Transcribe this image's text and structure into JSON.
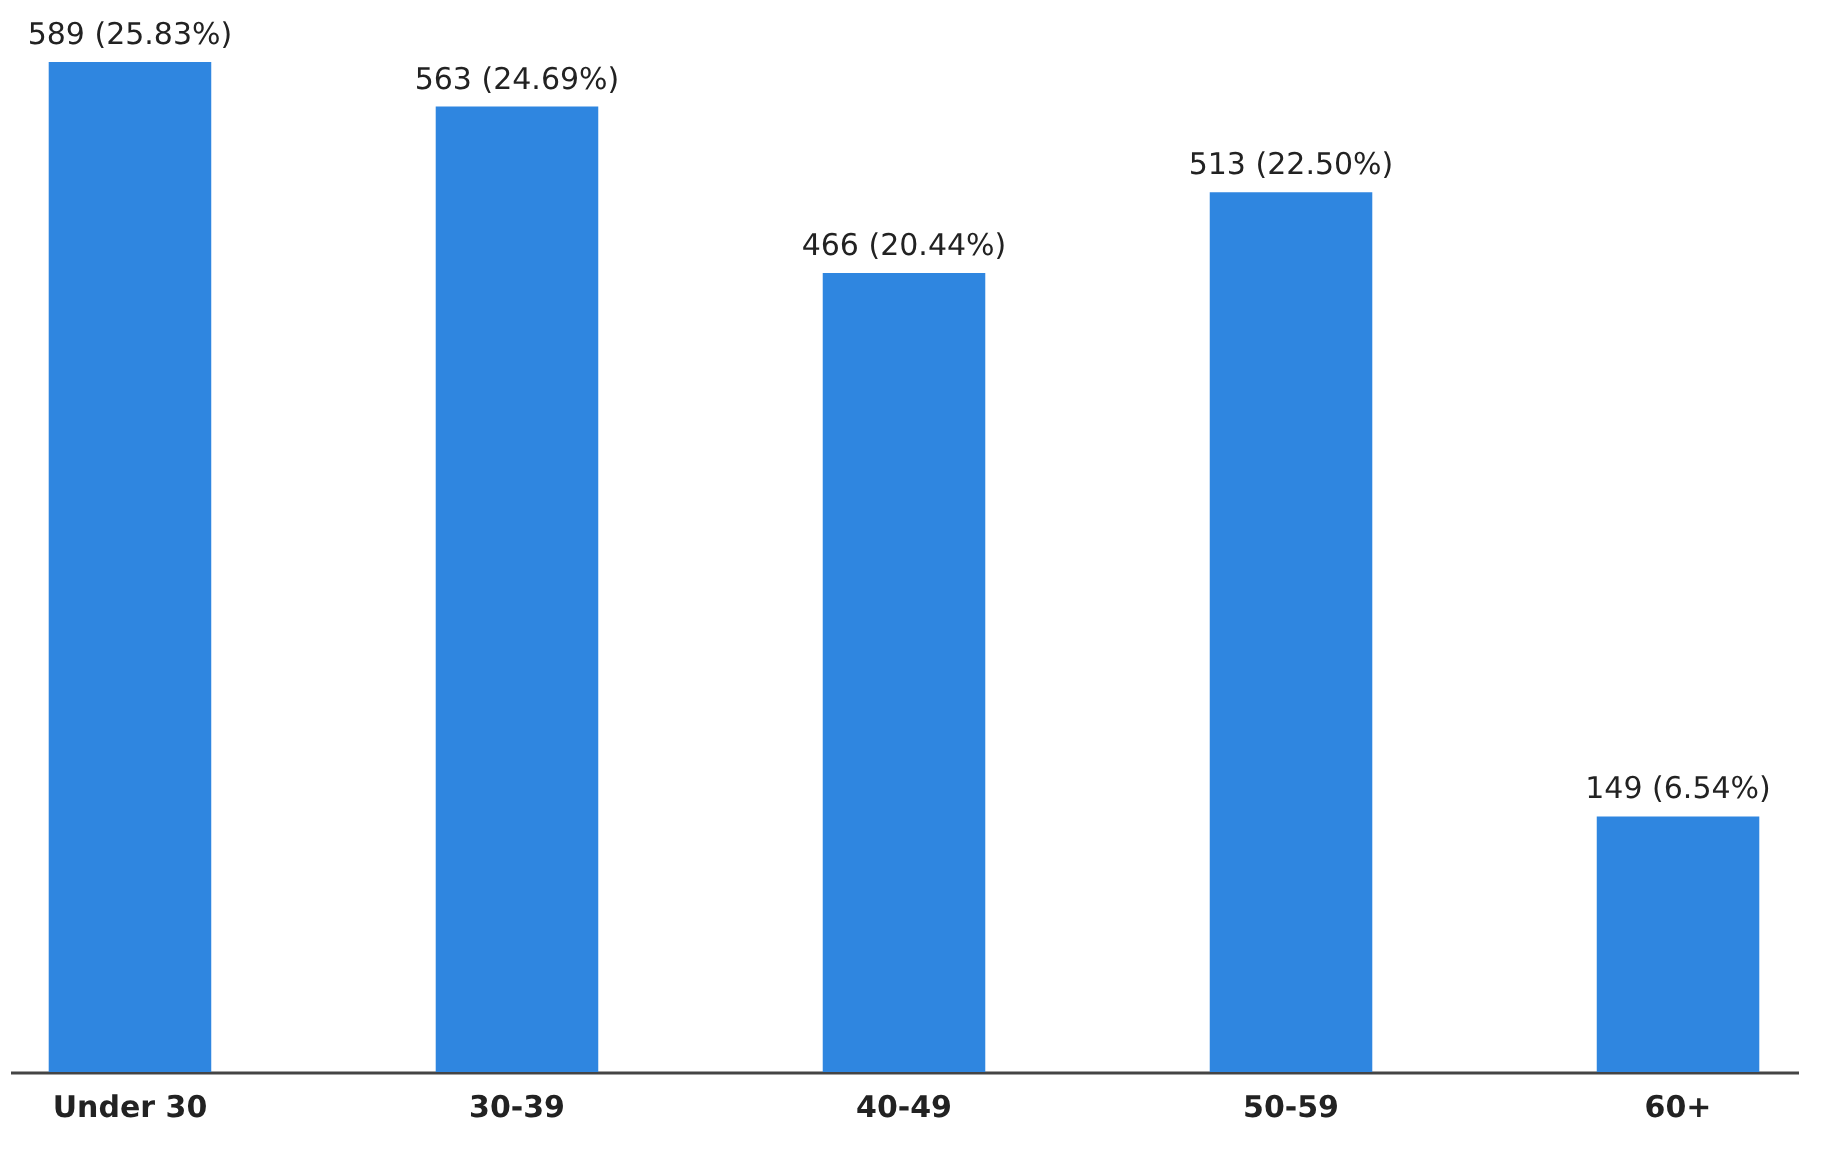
{
  "chart_data": {
    "type": "bar",
    "categories": [
      "Under 30",
      "30-39",
      "40-49",
      "50-59",
      "60+"
    ],
    "values": [
      589,
      563,
      466,
      513,
      149
    ],
    "value_labels": [
      "589 (25.83%)",
      "563 (24.69%)",
      "466 (20.44%)",
      "513 (22.50%)",
      "149 (6.54%)"
    ],
    "color": "#2f86e0",
    "grid": false
  }
}
